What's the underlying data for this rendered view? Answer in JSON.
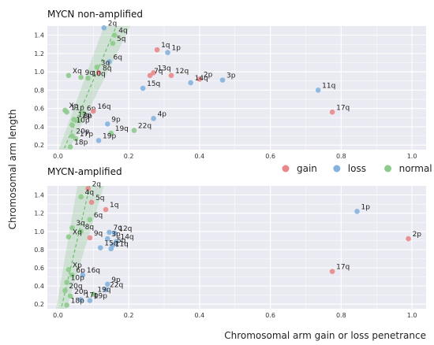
{
  "chart_data": {
    "type": "scatter",
    "ylabel": "Chromosomal arm length",
    "xlabel": "Chromosomal arm gain or loss penetrance",
    "legend": {
      "placement": "top-right of lower panel",
      "entries": [
        {
          "name": "gain",
          "color": "#e8888a"
        },
        {
          "name": "loss",
          "color": "#85b2de"
        },
        {
          "name": "normal",
          "color": "#8dcb8b"
        }
      ]
    },
    "xlim": [
      -0.03,
      1.04
    ],
    "xticks": [
      "0.0",
      "0.2",
      "0.4",
      "0.6",
      "0.8",
      "1.0"
    ],
    "xtick_values": [
      0,
      0.2,
      0.4,
      0.6,
      0.8,
      1.0
    ],
    "yticks": [
      "0.2",
      "0.4",
      "0.6",
      "0.8",
      "1.0",
      "1.2",
      "1.4"
    ],
    "ytick_values": [
      0.2,
      0.4,
      0.6,
      0.8,
      1.0,
      1.2,
      1.4
    ],
    "grid": true,
    "panels": [
      {
        "title": "MYCN non-amplified",
        "ylim": [
          0.15,
          1.5
        ],
        "trend": {
          "x0": 0.0,
          "y0": 0.0,
          "x1": 0.165,
          "y1": 1.5
        },
        "points": [
          {
            "label": "2q",
            "x": 0.13,
            "y": 1.48,
            "cat": "loss"
          },
          {
            "label": "4q",
            "x": 0.16,
            "y": 1.4,
            "cat": "normal"
          },
          {
            "label": "5q",
            "x": 0.155,
            "y": 1.31,
            "cat": "normal"
          },
          {
            "label": "1q",
            "x": 0.28,
            "y": 1.24,
            "cat": "gain"
          },
          {
            "label": "1p",
            "x": 0.31,
            "y": 1.21,
            "cat": "loss"
          },
          {
            "label": "6q",
            "x": 0.145,
            "y": 1.11,
            "cat": "loss"
          },
          {
            "label": "3q",
            "x": 0.11,
            "y": 1.05,
            "cat": "normal"
          },
          {
            "label": "8q",
            "x": 0.115,
            "y": 0.99,
            "cat": "gain"
          },
          {
            "label": "Xq",
            "x": 0.03,
            "y": 0.96,
            "cat": "normal"
          },
          {
            "label": "9q",
            "x": 0.065,
            "y": 0.94,
            "cat": "normal"
          },
          {
            "label": "10q",
            "x": 0.085,
            "y": 0.93,
            "cat": "normal"
          },
          {
            "label": "13q",
            "x": 0.27,
            "y": 0.99,
            "cat": "gain"
          },
          {
            "label": "7q",
            "x": 0.26,
            "y": 0.96,
            "cat": "gain"
          },
          {
            "label": "12q",
            "x": 0.32,
            "y": 0.96,
            "cat": "gain"
          },
          {
            "label": "2p",
            "x": 0.4,
            "y": 0.92,
            "cat": "gain"
          },
          {
            "label": "3p",
            "x": 0.465,
            "y": 0.91,
            "cat": "loss"
          },
          {
            "label": "14q",
            "x": 0.375,
            "y": 0.88,
            "cat": "loss"
          },
          {
            "label": "15q",
            "x": 0.24,
            "y": 0.82,
            "cat": "loss"
          },
          {
            "label": "11q",
            "x": 0.735,
            "y": 0.8,
            "cat": "loss"
          },
          {
            "label": "17q",
            "x": 0.775,
            "y": 0.56,
            "cat": "gain"
          },
          {
            "label": "Xp",
            "x": 0.02,
            "y": 0.58,
            "cat": "normal"
          },
          {
            "label": "11p",
            "x": 0.025,
            "y": 0.56,
            "cat": "normal"
          },
          {
            "label": "6p",
            "x": 0.07,
            "y": 0.55,
            "cat": "normal"
          },
          {
            "label": "16q",
            "x": 0.1,
            "y": 0.57,
            "cat": "gain"
          },
          {
            "label": "4p",
            "x": 0.27,
            "y": 0.49,
            "cat": "loss"
          },
          {
            "label": "12p",
            "x": 0.045,
            "y": 0.48,
            "cat": "normal"
          },
          {
            "label": "8p",
            "x": 0.06,
            "y": 0.47,
            "cat": "normal"
          },
          {
            "label": "9p",
            "x": 0.14,
            "y": 0.43,
            "cat": "loss"
          },
          {
            "label": "10p",
            "x": 0.04,
            "y": 0.42,
            "cat": "normal"
          },
          {
            "label": "22q",
            "x": 0.215,
            "y": 0.36,
            "cat": "normal"
          },
          {
            "label": "19q",
            "x": 0.15,
            "y": 0.33,
            "cat": "normal"
          },
          {
            "label": "20p",
            "x": 0.04,
            "y": 0.3,
            "cat": "normal"
          },
          {
            "label": "17p",
            "x": 0.05,
            "y": 0.27,
            "cat": "normal"
          },
          {
            "label": "19p",
            "x": 0.115,
            "y": 0.25,
            "cat": "loss"
          },
          {
            "label": "18p",
            "x": 0.035,
            "y": 0.18,
            "cat": "normal"
          }
        ]
      },
      {
        "title": "MYCN-amplified",
        "ylim": [
          0.15,
          1.5
        ],
        "trend": {
          "x0": 0.0,
          "y0": 0.0,
          "x1": 0.09,
          "y1": 1.5
        },
        "points": [
          {
            "label": "2q",
            "x": 0.085,
            "y": 1.47,
            "cat": "gain"
          },
          {
            "label": "4q",
            "x": 0.065,
            "y": 1.38,
            "cat": "normal"
          },
          {
            "label": "5q",
            "x": 0.095,
            "y": 1.32,
            "cat": "gain"
          },
          {
            "label": "1q",
            "x": 0.135,
            "y": 1.24,
            "cat": "gain"
          },
          {
            "label": "1p",
            "x": 0.845,
            "y": 1.22,
            "cat": "loss"
          },
          {
            "label": "2p",
            "x": 0.99,
            "y": 0.92,
            "cat": "gain"
          },
          {
            "label": "6q",
            "x": 0.09,
            "y": 1.13,
            "cat": "normal"
          },
          {
            "label": "3q",
            "x": 0.04,
            "y": 1.04,
            "cat": "normal"
          },
          {
            "label": "8q",
            "x": 0.065,
            "y": 1.0,
            "cat": "normal"
          },
          {
            "label": "Xq",
            "x": 0.03,
            "y": 0.94,
            "cat": "normal"
          },
          {
            "label": "9q",
            "x": 0.09,
            "y": 0.93,
            "cat": "gain"
          },
          {
            "label": "7q",
            "x": 0.145,
            "y": 0.99,
            "cat": "loss"
          },
          {
            "label": "12q",
            "x": 0.16,
            "y": 0.98,
            "cat": "loss"
          },
          {
            "label": "3p",
            "x": 0.14,
            "y": 0.92,
            "cat": "loss"
          },
          {
            "label": "14q",
            "x": 0.165,
            "y": 0.89,
            "cat": "loss"
          },
          {
            "label": "5q",
            "x": 0.155,
            "y": 0.85,
            "cat": "loss"
          },
          {
            "label": "11q",
            "x": 0.15,
            "y": 0.81,
            "cat": "loss"
          },
          {
            "label": "15q",
            "x": 0.12,
            "y": 0.82,
            "cat": "loss"
          },
          {
            "label": "17q",
            "x": 0.775,
            "y": 0.56,
            "cat": "gain"
          },
          {
            "label": "Xp",
            "x": 0.03,
            "y": 0.58,
            "cat": "normal"
          },
          {
            "label": "6p",
            "x": 0.04,
            "y": 0.52,
            "cat": "normal"
          },
          {
            "label": "16q",
            "x": 0.07,
            "y": 0.52,
            "cat": "loss"
          },
          {
            "label": "9p",
            "x": 0.14,
            "y": 0.42,
            "cat": "loss"
          },
          {
            "label": "22q",
            "x": 0.135,
            "y": 0.36,
            "cat": "loss"
          },
          {
            "label": "19q",
            "x": 0.1,
            "y": 0.31,
            "cat": "normal"
          },
          {
            "label": "10p",
            "x": 0.025,
            "y": 0.44,
            "cat": "normal"
          },
          {
            "label": "20q",
            "x": 0.02,
            "y": 0.35,
            "cat": "normal"
          },
          {
            "label": "20p",
            "x": 0.035,
            "y": 0.29,
            "cat": "normal"
          },
          {
            "label": "17p",
            "x": 0.065,
            "y": 0.25,
            "cat": "loss"
          },
          {
            "label": "19p",
            "x": 0.09,
            "y": 0.24,
            "cat": "loss"
          },
          {
            "label": "18p",
            "x": 0.025,
            "y": 0.19,
            "cat": "normal"
          }
        ]
      }
    ]
  }
}
